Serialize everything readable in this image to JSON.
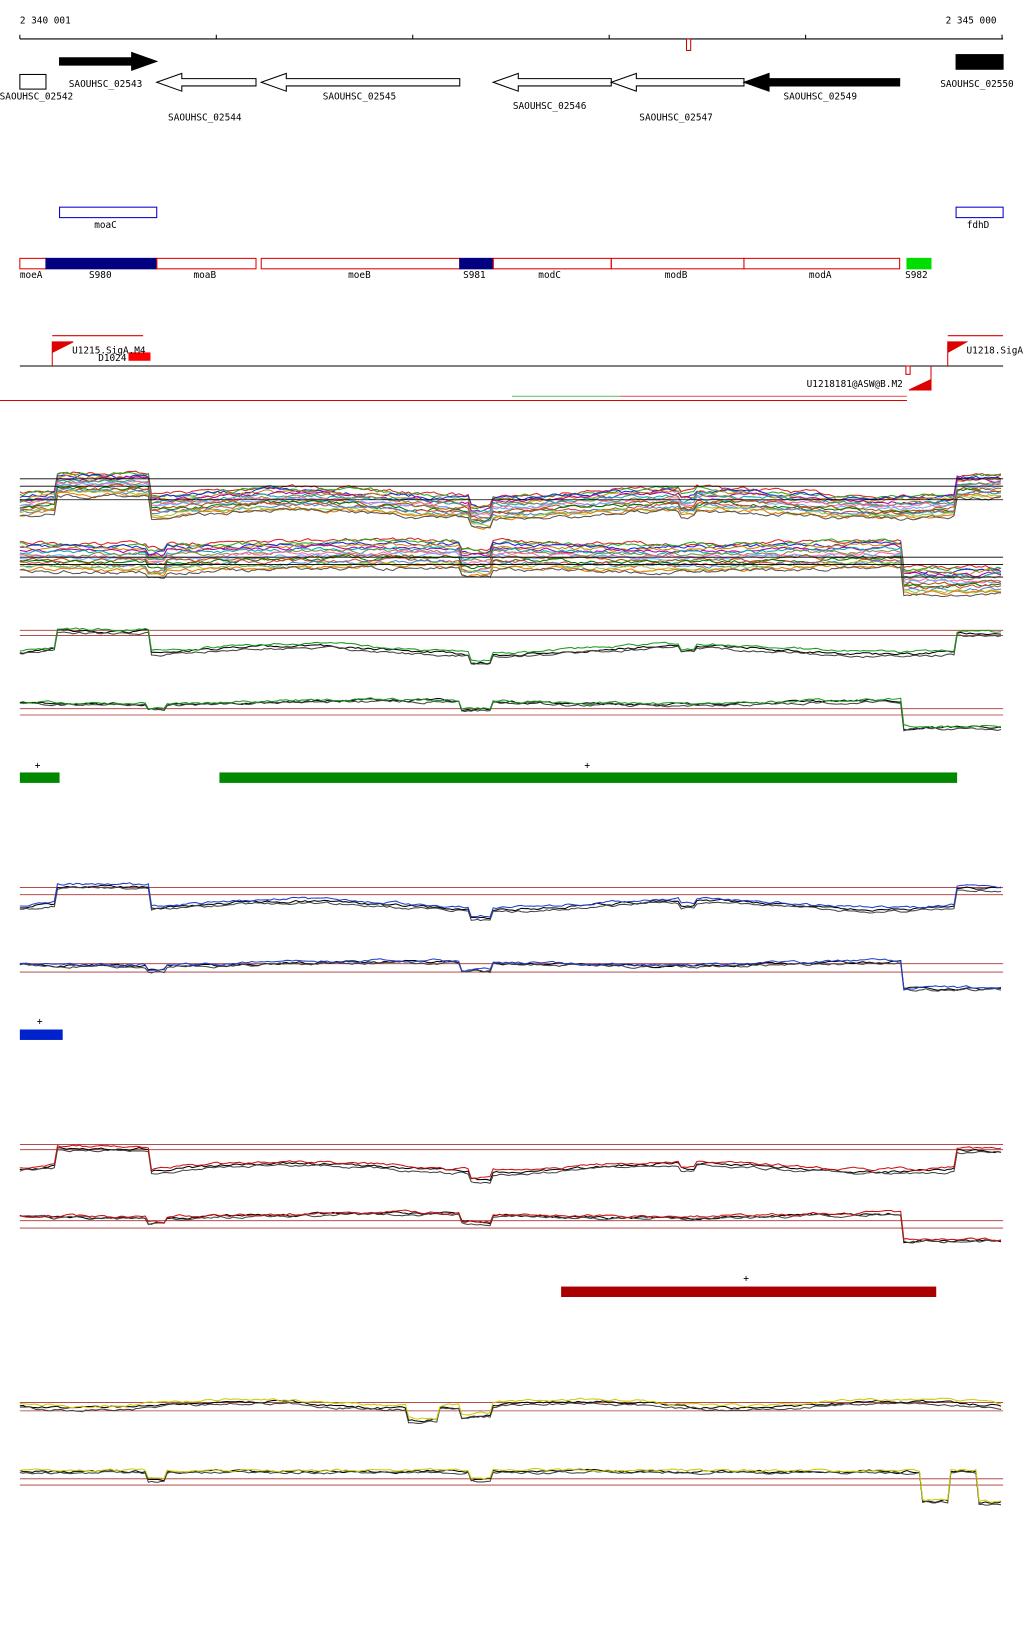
{
  "ruler": {
    "labels": [
      "2 340 001",
      "2 345 000"
    ]
  },
  "genes": [
    "SAOUHSC_02542",
    "SAOUHSC_02543",
    "SAOUHSC_02544",
    "SAOUHSC_02545",
    "SAOUHSC_02546",
    "SAOUHSC_02547",
    "SAOUHSC_02549",
    "SAOUHSC_02550"
  ],
  "features": {
    "row1": [
      "moaC",
      "fdhD"
    ],
    "row2": [
      "moeA",
      "S980",
      "moaB",
      "moeB",
      "S981",
      "modC",
      "modB",
      "modA",
      "S982"
    ]
  },
  "promoters": [
    "U1215.SigA.M4",
    "D1024",
    "U1218.SigA",
    "U1218181@ASW@B.M2"
  ],
  "tracks": {
    "marks": [
      "+",
      "+",
      "+",
      "+"
    ]
  }
}
